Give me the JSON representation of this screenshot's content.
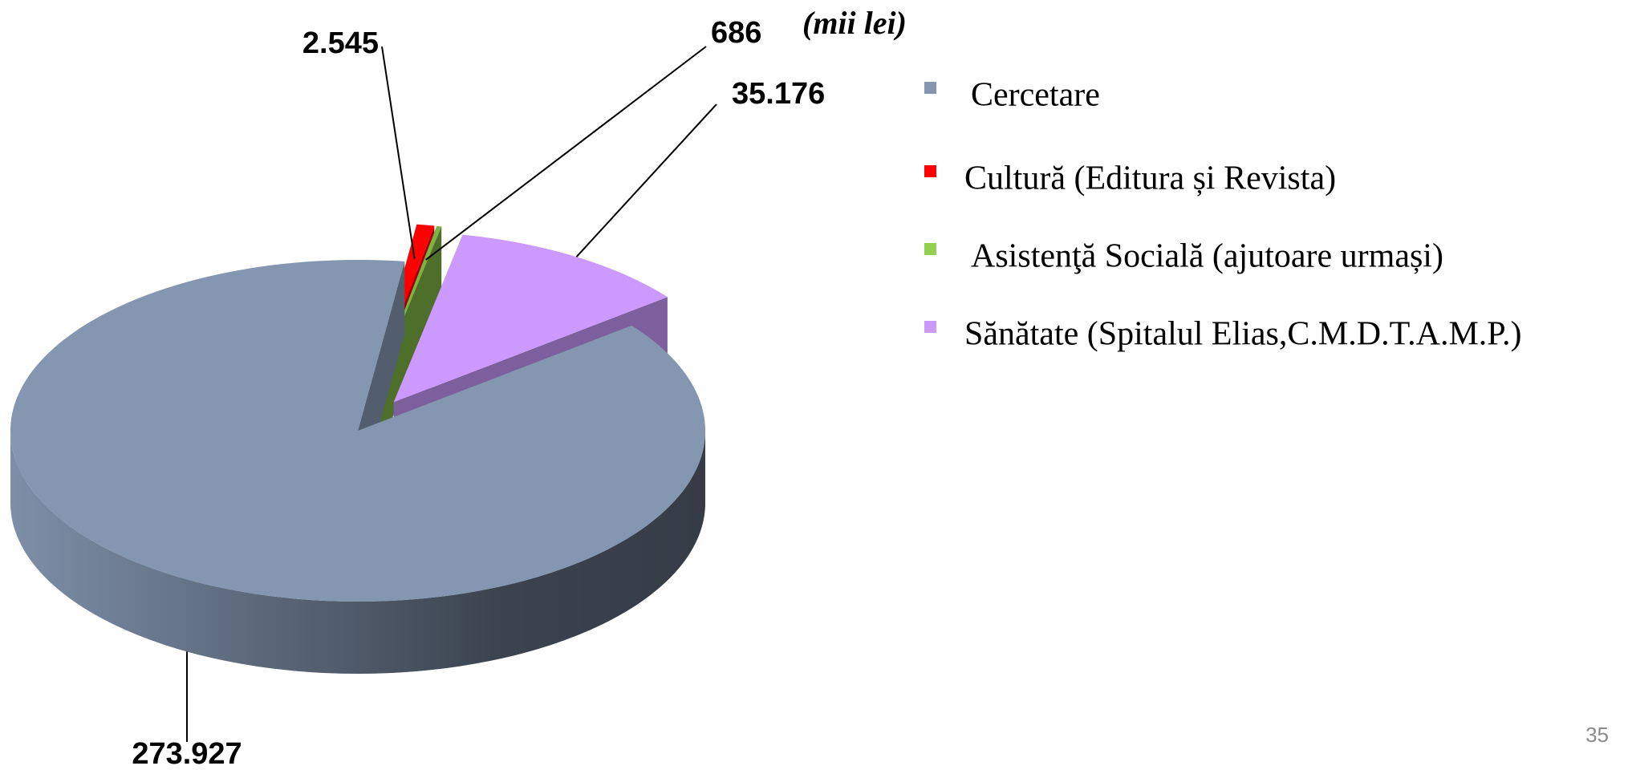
{
  "chart_data": {
    "type": "pie3d",
    "subtitle": "(mii lei)",
    "categories": [
      "Cercetare",
      "Cultură (Editura și Revista)",
      "Asistenţă Socială (ajutoare urmași)",
      "Sănătate (Spitalul Elias,C.M.D.T.A.M.P.)"
    ],
    "values": [
      273927,
      2545,
      686,
      35176
    ],
    "value_labels": [
      "273.927",
      "2.545",
      "686",
      "35.176"
    ],
    "colors": [
      "#8496b0",
      "#ff0000",
      "#7cb342",
      "#cc99ff"
    ],
    "legend_colors": [
      "#8496b0",
      "#ff0000",
      "#92d050",
      "#cc99ff"
    ],
    "legend": "right"
  },
  "page_number": "35"
}
